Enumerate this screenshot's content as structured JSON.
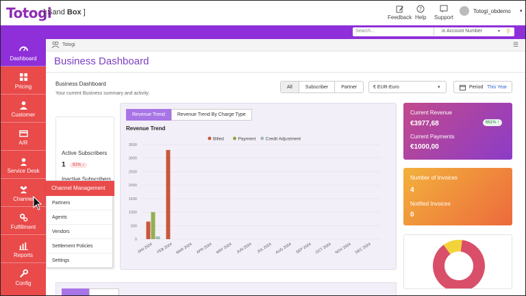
{
  "header": {
    "logo_text": "Totogi",
    "env_bracket_open": "[",
    "env_label_plain": "Sand",
    "env_label_bold": "Box",
    "env_bracket_close": "]",
    "actions": [
      {
        "label": "Feedback",
        "icon": "edit-icon"
      },
      {
        "label": "Help",
        "icon": "question-icon"
      },
      {
        "label": "Support",
        "icon": "support-icon"
      }
    ],
    "user_name": "Totogi_obdemo"
  },
  "search": {
    "placeholder": "Search...",
    "scope_prefix": "in",
    "scope": "Account Number"
  },
  "sidebar": {
    "items": [
      {
        "label": "Dashboard",
        "icon": "speedometer-icon",
        "active": true
      },
      {
        "label": "Pricing",
        "icon": "grid-icon"
      },
      {
        "label": "Customer",
        "icon": "person-icon"
      },
      {
        "label": "A/R",
        "icon": "card-icon"
      },
      {
        "label": "Service Desk",
        "icon": "headset-icon"
      },
      {
        "label": "Channel",
        "icon": "users-icon"
      },
      {
        "label": "Fulfillment",
        "icon": "gears-icon"
      },
      {
        "label": "Reports",
        "icon": "bar-chart-icon"
      },
      {
        "label": "Config",
        "icon": "wrench-icon"
      }
    ]
  },
  "flyout": {
    "header": "Channel Management",
    "items": [
      "Partners",
      "Agents",
      "Vendors",
      "Settlement Policies",
      "Settings"
    ]
  },
  "breadcrumb": {
    "label": "Totogi"
  },
  "page": {
    "title": "Business Dashboard",
    "section_title": "Business Dashboard",
    "section_subtitle": "Your current Business summary and activity."
  },
  "filters": {
    "segments": [
      "All",
      "Subscriber",
      "Partner"
    ],
    "selected_segment": "All",
    "currency": "€  EUR-Euro",
    "period_label": "Period",
    "period_value": "This Year"
  },
  "subscribers": {
    "active_label": "Active Subscribers",
    "active_count": "1",
    "active_change": "91% ↓",
    "inactive_label": "Inactive Subscribers"
  },
  "revenue_tabs": [
    "Revenue Trend",
    "Revenue Trend By Charge Type"
  ],
  "chart_data": {
    "type": "bar",
    "title": "Revenue Trend",
    "categories": [
      "JAN 2024",
      "FEB 2024",
      "MAR 2024",
      "APR 2024",
      "MAY 2024",
      "JUN 2024",
      "JUL 2024",
      "AUG 2024",
      "SEP 2024",
      "OCT 2024",
      "NOV 2024",
      "DEC 2024"
    ],
    "series": [
      {
        "name": "Billed",
        "color": "#c9573a",
        "values": [
          650,
          3300,
          0,
          0,
          0,
          0,
          0,
          0,
          0,
          0,
          0,
          0
        ]
      },
      {
        "name": "Payment",
        "color": "#8aa63f",
        "values": [
          1000,
          0,
          0,
          0,
          0,
          0,
          0,
          0,
          0,
          0,
          0,
          0
        ]
      },
      {
        "name": "Credit Adjustment",
        "color": "#9fb8b8",
        "values": [
          100,
          0,
          0,
          0,
          0,
          0,
          0,
          0,
          0,
          0,
          0,
          0
        ]
      }
    ],
    "ylim": [
      0,
      3500
    ],
    "yticks": [
      "0",
      "500",
      "1000",
      "1500",
      "2000",
      "2500",
      "3000",
      "3500"
    ],
    "legend": "top"
  },
  "revenue_card": {
    "current_revenue_label": "Current Revenue",
    "current_revenue_value": "€3977,68",
    "growth_badge": "661% ↑",
    "current_payments_label": "Current Payments",
    "current_payments_value": "€1000,00"
  },
  "invoice_card": {
    "invoices_label": "Number of Invoices",
    "invoices_value": "4",
    "notified_label": "Notified Invoices",
    "notified_value": "0"
  },
  "donut": {
    "segments": [
      {
        "value": 0.88,
        "color": "#d94f6a"
      },
      {
        "value": 0.12,
        "color": "#f2d43a"
      }
    ]
  }
}
